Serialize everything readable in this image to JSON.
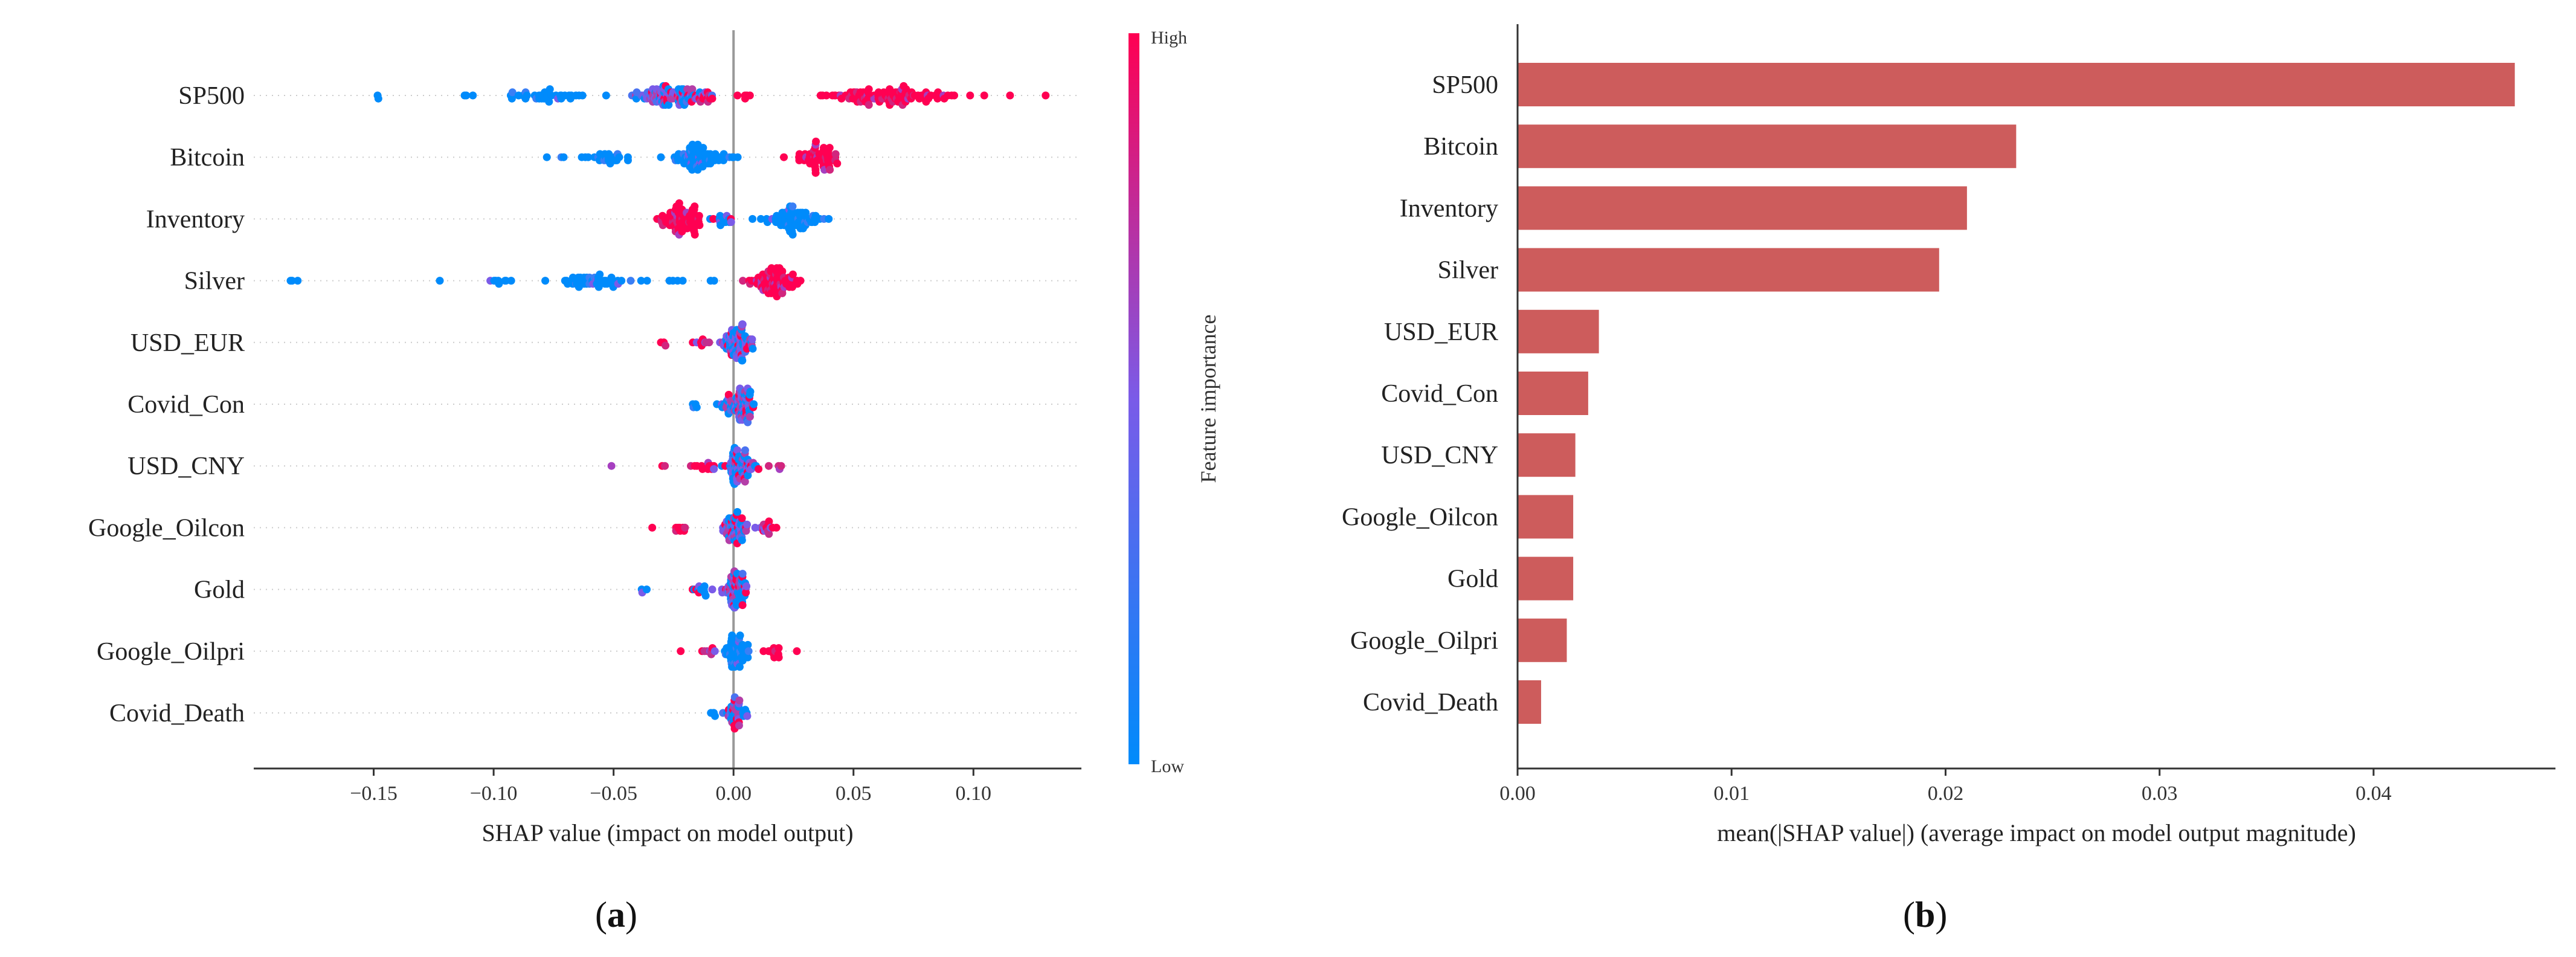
{
  "panels": [
    {
      "label_open": "(",
      "label_letter": "a",
      "label_close": ")"
    },
    {
      "label_open": "(",
      "label_letter": "b",
      "label_close": ")"
    }
  ],
  "colors": {
    "high": "#ff0052",
    "low": "#008bfb",
    "bar": "#cd5c5c",
    "axis": "#333333",
    "grid": "#cccccc",
    "zero": "#999999"
  },
  "chart_data": [
    {
      "type": "scatter",
      "subtype": "shap-beeswarm",
      "title": "",
      "xlabel": "SHAP value (impact on model output)",
      "ylabel": "",
      "xlim": [
        -0.2,
        0.145
      ],
      "xticks": [
        -0.15,
        -0.1,
        -0.05,
        0.0,
        0.05,
        0.1
      ],
      "xtick_labels": [
        "−0.15",
        "−0.10",
        "−0.05",
        "0.00",
        "0.05",
        "0.10"
      ],
      "features": [
        "SP500",
        "Bitcoin",
        "Inventory",
        "Silver",
        "USD_EUR",
        "Covid_Con",
        "USD_CNY",
        "Google_Oilcon",
        "Gold",
        "Google_Oilpri",
        "Covid_Death"
      ],
      "series": [
        {
          "name": "SP500",
          "clusters": [
            {
              "center": -0.148,
              "spread": 0.002,
              "n": 2,
              "color": "low"
            },
            {
              "center": -0.112,
              "spread": 0.004,
              "n": 3,
              "color": "low"
            },
            {
              "center": -0.075,
              "spread": 0.018,
              "n": 40,
              "color": "low"
            },
            {
              "center": -0.028,
              "spread": 0.012,
              "n": 90,
              "color": "mid"
            },
            {
              "center": -0.012,
              "spread": 0.004,
              "n": 18,
              "color": "mixhigh"
            },
            {
              "center": 0.005,
              "spread": 0.004,
              "n": 5,
              "color": "high"
            },
            {
              "center": 0.065,
              "spread": 0.022,
              "n": 120,
              "color": "high"
            },
            {
              "center": 0.13,
              "spread": 0.001,
              "n": 1,
              "color": "high"
            }
          ]
        },
        {
          "name": "Bitcoin",
          "clusters": [
            {
              "center": -0.072,
              "spread": 0.004,
              "n": 3,
              "color": "low"
            },
            {
              "center": -0.052,
              "spread": 0.008,
              "n": 25,
              "color": "low"
            },
            {
              "center": -0.014,
              "spread": 0.008,
              "n": 80,
              "color": "low"
            },
            {
              "center": 0.0,
              "spread": 0.002,
              "n": 4,
              "color": "low"
            },
            {
              "center": 0.035,
              "spread": 0.007,
              "n": 60,
              "color": "high"
            }
          ]
        },
        {
          "name": "Inventory",
          "clusters": [
            {
              "center": -0.022,
              "spread": 0.008,
              "n": 80,
              "color": "high"
            },
            {
              "center": -0.004,
              "spread": 0.005,
              "n": 15,
              "color": "mixlow"
            },
            {
              "center": 0.025,
              "spread": 0.01,
              "n": 80,
              "color": "low"
            }
          ]
        },
        {
          "name": "Silver",
          "clusters": [
            {
              "center": -0.183,
              "spread": 0.002,
              "n": 3,
              "color": "low"
            },
            {
              "center": -0.123,
              "spread": 0.001,
              "n": 1,
              "color": "low"
            },
            {
              "center": -0.095,
              "spread": 0.006,
              "n": 8,
              "color": "low"
            },
            {
              "center": -0.06,
              "spread": 0.015,
              "n": 50,
              "color": "low"
            },
            {
              "center": -0.025,
              "spread": 0.004,
              "n": 4,
              "color": "low"
            },
            {
              "center": -0.008,
              "spread": 0.002,
              "n": 2,
              "color": "low"
            },
            {
              "center": 0.015,
              "spread": 0.008,
              "n": 90,
              "color": "high"
            }
          ]
        },
        {
          "name": "USD_EUR",
          "clusters": [
            {
              "center": -0.03,
              "spread": 0.003,
              "n": 3,
              "color": "high"
            },
            {
              "center": -0.012,
              "spread": 0.004,
              "n": 8,
              "color": "mixhigh"
            },
            {
              "center": 0.002,
              "spread": 0.006,
              "n": 80,
              "color": "mid"
            }
          ]
        },
        {
          "name": "Covid_Con",
          "clusters": [
            {
              "center": -0.016,
              "spread": 0.002,
              "n": 4,
              "color": "low"
            },
            {
              "center": 0.002,
              "spread": 0.006,
              "n": 80,
              "color": "mid"
            }
          ]
        },
        {
          "name": "USD_CNY",
          "clusters": [
            {
              "center": -0.05,
              "spread": 0.001,
              "n": 1,
              "color": "high"
            },
            {
              "center": -0.028,
              "spread": 0.002,
              "n": 2,
              "color": "high"
            },
            {
              "center": -0.012,
              "spread": 0.005,
              "n": 12,
              "color": "high"
            },
            {
              "center": 0.002,
              "spread": 0.006,
              "n": 70,
              "color": "mid"
            },
            {
              "center": 0.018,
              "spread": 0.003,
              "n": 4,
              "color": "high"
            }
          ]
        },
        {
          "name": "Google_Oilcon",
          "clusters": [
            {
              "center": -0.035,
              "spread": 0.001,
              "n": 1,
              "color": "high"
            },
            {
              "center": -0.022,
              "spread": 0.004,
              "n": 8,
              "color": "high"
            },
            {
              "center": 0.001,
              "spread": 0.004,
              "n": 60,
              "color": "mid"
            },
            {
              "center": 0.013,
              "spread": 0.004,
              "n": 16,
              "color": "mixhigh"
            }
          ]
        },
        {
          "name": "Gold",
          "clusters": [
            {
              "center": -0.036,
              "spread": 0.002,
              "n": 3,
              "color": "low"
            },
            {
              "center": -0.014,
              "spread": 0.004,
              "n": 12,
              "color": "mixlow"
            },
            {
              "center": 0.001,
              "spread": 0.004,
              "n": 70,
              "color": "mid"
            }
          ]
        },
        {
          "name": "Google_Oilpri",
          "clusters": [
            {
              "center": -0.022,
              "spread": 0.001,
              "n": 1,
              "color": "high"
            },
            {
              "center": -0.01,
              "spread": 0.004,
              "n": 8,
              "color": "mixhigh"
            },
            {
              "center": 0.001,
              "spread": 0.004,
              "n": 60,
              "color": "low"
            },
            {
              "center": 0.015,
              "spread": 0.004,
              "n": 12,
              "color": "high"
            },
            {
              "center": 0.026,
              "spread": 0.001,
              "n": 1,
              "color": "high"
            }
          ]
        },
        {
          "name": "Covid_Death",
          "clusters": [
            {
              "center": -0.008,
              "spread": 0.002,
              "n": 4,
              "color": "low"
            },
            {
              "center": 0.001,
              "spread": 0.003,
              "n": 40,
              "color": "mid"
            }
          ]
        }
      ],
      "colorbar": {
        "title": "Feature importance",
        "high_label": "High",
        "low_label": "Low"
      }
    },
    {
      "type": "bar",
      "orientation": "horizontal",
      "title": "",
      "xlabel": "mean(|SHAP value|) (average impact on model output magnitude)",
      "ylabel": "",
      "categories": [
        "SP500",
        "Bitcoin",
        "Inventory",
        "Silver",
        "USD_EUR",
        "Covid_Con",
        "USD_CNY",
        "Google_Oilcon",
        "Gold",
        "Google_Oilpri",
        "Covid_Death"
      ],
      "values": [
        0.0466,
        0.0233,
        0.021,
        0.0197,
        0.0038,
        0.0033,
        0.0027,
        0.0026,
        0.0026,
        0.0023,
        0.0011
      ],
      "xlim": [
        0.0,
        0.0485
      ],
      "xticks": [
        0.0,
        0.01,
        0.02,
        0.03,
        0.04
      ],
      "xtick_labels": [
        "0.00",
        "0.01",
        "0.02",
        "0.03",
        "0.04"
      ]
    }
  ]
}
